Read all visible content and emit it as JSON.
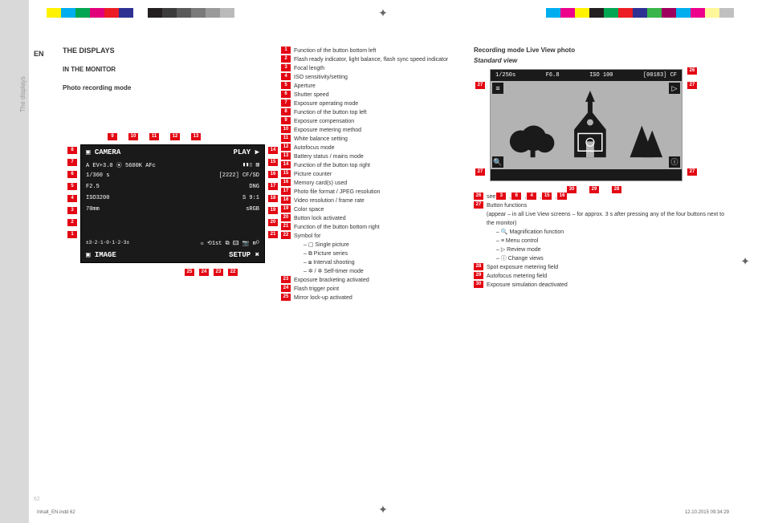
{
  "lang": "EN",
  "sectionTab": "The displays",
  "pageNum": "62",
  "colorStrips": {
    "left": [
      "#ffffff",
      "#fff200",
      "#00aeef",
      "#00a651",
      "#e3007b",
      "#ed1c24",
      "#2e3192",
      "#ffffff",
      "#231f20",
      "#3b3b3b",
      "#5a5a5a",
      "#7a7a7a",
      "#9a9a9a",
      "#bababa"
    ],
    "right": [
      "#00aeef",
      "#ec008c",
      "#fff200",
      "#231f20",
      "#00a651",
      "#ed1c24",
      "#2e3192",
      "#39b54a",
      "#9e005d",
      "#00adee",
      "#ed008c",
      "#fff799",
      "#c0c0c0"
    ]
  },
  "col1": {
    "heading": "THE DISPLAYS",
    "sub1": "IN THE MONITOR",
    "sub2": "Photo recording mode"
  },
  "cameraLcd": {
    "topLeft": "▣ CAMERA",
    "topRight": "PLAY ▶",
    "row1L": "A  EV+3.0  ⦿  5600K  AFc",
    "row1R": "▮▮▯ ▥",
    "row2L": "1/360 s",
    "row2R": "[2222] CF/SD",
    "row3L": "F2.5",
    "row3R": "DNG",
    "row4L": "ISO3200",
    "row4R": "S  9:1",
    "row5L": "70mm",
    "row5R": "sRGB",
    "scaleL": "±3·2·1·0·1·2·3±",
    "iconsR": "☼ ⟲1st ⧉ 🖾 📷 mᴼ",
    "botLeft": "▣ IMAGE",
    "botRight": "SETUP ✖",
    "badgesTop": [
      "9",
      "10",
      "11",
      "12",
      "13"
    ],
    "badgesLeft": [
      "8",
      "7",
      "6",
      "5",
      "4",
      "3",
      "2",
      "1"
    ],
    "badgesRight": [
      "14",
      "15",
      "16",
      "17",
      "18",
      "19",
      "20",
      "21"
    ],
    "badgesBottom": [
      "25",
      "24",
      "23",
      "22"
    ]
  },
  "col2_items": [
    {
      "n": "1",
      "t": "Function of the button bottom left"
    },
    {
      "n": "2",
      "t": "Flash ready indicator, light balance, flash sync speed indicator"
    },
    {
      "n": "3",
      "t": "Focal length"
    },
    {
      "n": "4",
      "t": "ISO sensitivity/setting"
    },
    {
      "n": "5",
      "t": "Aperture"
    },
    {
      "n": "6",
      "t": "Shutter speed"
    },
    {
      "n": "7",
      "t": "Exposure operating mode"
    },
    {
      "n": "8",
      "t": "Function of the button top left"
    },
    {
      "n": "9",
      "t": "Exposure compensation"
    },
    {
      "n": "10",
      "t": "Exposure metering method"
    },
    {
      "n": "11",
      "t": "White balance setting"
    },
    {
      "n": "12",
      "t": "Autofocus mode"
    },
    {
      "n": "13",
      "t": "Battery status / mains mode"
    },
    {
      "n": "14",
      "t": "Function of the button top right"
    },
    {
      "n": "15",
      "t": "Picture counter"
    },
    {
      "n": "16",
      "t": "Memory card(s) used"
    },
    {
      "n": "17",
      "t": "Photo file format / JPEG resolution"
    },
    {
      "n": "18",
      "t": "Video resolution / frame rate"
    },
    {
      "n": "19",
      "t": "Color space"
    },
    {
      "n": "20",
      "t": "Button lock activated"
    },
    {
      "n": "21",
      "t": "Function of the button bottom right"
    },
    {
      "n": "22",
      "t": "Symbol for"
    }
  ],
  "col2_sub22": [
    "–   ▢   Single picture",
    "–   ⧉   Picture series",
    "–   ⧇   Interval shooting",
    "–   ✲ / ✲   Self-timer mode"
  ],
  "col2_items_b": [
    {
      "n": "23",
      "t": "Exposure bracketing activated"
    },
    {
      "n": "24",
      "t": "Flash trigger point"
    },
    {
      "n": "25",
      "t": "Mirror lock-up activated"
    }
  ],
  "col3": {
    "heading": "Recording mode Live View photo",
    "sub": "Standard view",
    "lvTop": {
      "shutter": "1/250s",
      "ap": "F6.8",
      "iso": "ISO 100",
      "counter": "[00183] CF"
    },
    "see_prefix": "see",
    "see_refs": [
      "3",
      "6",
      "4",
      "15",
      "16"
    ]
  },
  "col3_items": [
    {
      "n": "26",
      "t": "see 3, 6, 4, 15, 16",
      "special": true
    },
    {
      "n": "27",
      "t": "Button functions"
    }
  ],
  "col3_27sub": [
    "(appear – in all Live View screens – for approx. 3 s after pressing any of the four buttons next to the monitor)",
    "–   🔍   Magnification function",
    "–   ≡   Menu control",
    "–   ▷   Review mode",
    "–   ⓘ   Change views"
  ],
  "col3_items_b": [
    {
      "n": "28",
      "t": "Spot exposure metering field"
    },
    {
      "n": "29",
      "t": "Autofocus metering field"
    },
    {
      "n": "30",
      "t": "Exposure simulation deactivated"
    }
  ],
  "lv_badges": {
    "topRight": "26",
    "cornersL": "27",
    "cornersR": "27",
    "bottomL": "27",
    "bottomR": "27",
    "scene": [
      "30",
      "29",
      "28"
    ]
  },
  "footer": {
    "left": "Inhalt_EN.indd   62",
    "right": "12.10.2015   09:34:29"
  }
}
